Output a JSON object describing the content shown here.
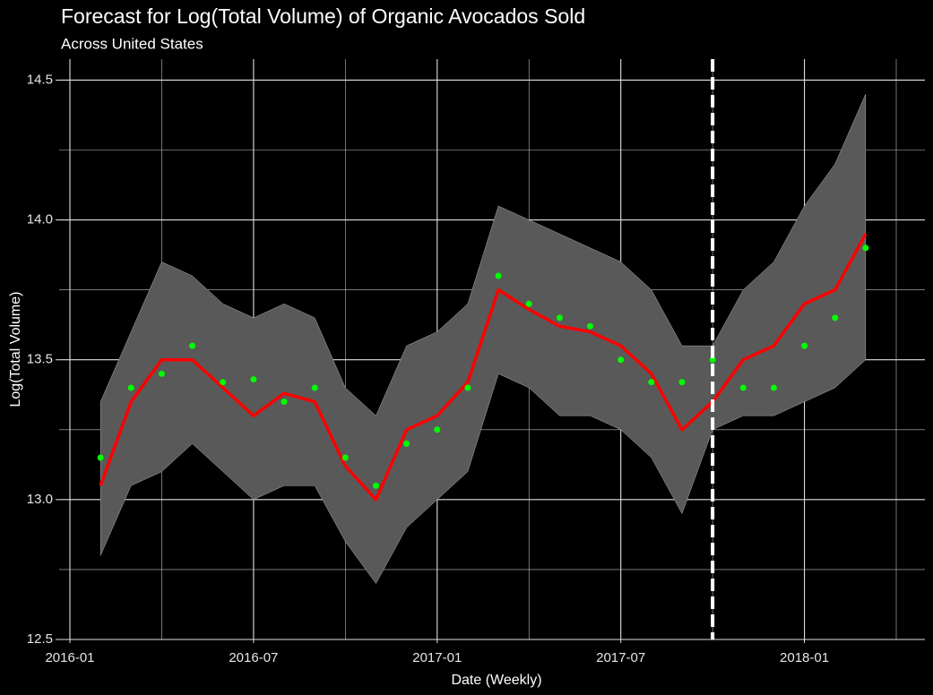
{
  "chart_data": {
    "type": "forecast",
    "title": "Forecast for Log(Total Volume) of Organic Avocados Sold",
    "subtitle": "Across United States",
    "x_label": "Date (Weekly)",
    "y_label": "Log(Total Volume)",
    "x": [
      "2016-02",
      "2016-03",
      "2016-04",
      "2016-05",
      "2016-06",
      "2016-07",
      "2016-08",
      "2016-09",
      "2016-10",
      "2016-11",
      "2016-12",
      "2017-01",
      "2017-02",
      "2017-03",
      "2017-04",
      "2017-05",
      "2017-06",
      "2017-07",
      "2017-08",
      "2017-09",
      "2017-10",
      "2017-11",
      "2017-12",
      "2018-01",
      "2018-02",
      "2018-03"
    ],
    "fitted": {
      "color": "#ff0000",
      "values": [
        13.05,
        13.35,
        13.5,
        13.5,
        13.4,
        13.3,
        13.38,
        13.35,
        13.12,
        13.0,
        13.25,
        13.3,
        13.42,
        13.75,
        13.68,
        13.62,
        13.6,
        13.55,
        13.45,
        13.25,
        13.35,
        13.5,
        13.55,
        13.7,
        13.75,
        13.95
      ]
    },
    "actual": {
      "color": "#00ff00",
      "values": [
        13.15,
        13.4,
        13.45,
        13.55,
        13.42,
        13.43,
        13.35,
        13.4,
        13.15,
        13.05,
        13.2,
        13.25,
        13.4,
        13.8,
        13.7,
        13.65,
        13.62,
        13.5,
        13.42,
        13.42,
        13.5,
        13.4,
        13.4,
        13.55,
        13.65,
        13.9
      ]
    },
    "band": {
      "color": "#595959",
      "lower": [
        12.8,
        13.05,
        13.1,
        13.2,
        13.1,
        13.0,
        13.05,
        13.05,
        12.85,
        12.7,
        12.9,
        13.0,
        13.1,
        13.45,
        13.4,
        13.3,
        13.3,
        13.25,
        13.15,
        12.95,
        13.25,
        13.3,
        13.3,
        13.35,
        13.4,
        13.5
      ],
      "upper": [
        13.35,
        13.6,
        13.85,
        13.8,
        13.7,
        13.65,
        13.7,
        13.65,
        13.4,
        13.3,
        13.55,
        13.6,
        13.7,
        14.05,
        14.0,
        13.95,
        13.9,
        13.85,
        13.75,
        13.55,
        13.55,
        13.75,
        13.85,
        14.05,
        14.2,
        14.45
      ]
    },
    "forecast_start": "2017-10",
    "xlim": [
      "2016-01",
      "2018-04"
    ],
    "xticks": [
      "2016-01",
      "2016-07",
      "2017-01",
      "2017-07",
      "2018-01"
    ],
    "xminor_ticks": [
      "2016-04",
      "2016-10",
      "2017-04",
      "2017-10",
      "2018-04"
    ],
    "ylim": [
      12.5,
      14.575
    ],
    "yticks": [
      {
        "value": 12.5,
        "label": "12.5"
      },
      {
        "value": 13,
        "label": "13.0"
      },
      {
        "value": 13.5,
        "label": "13.5"
      },
      {
        "value": 14,
        "label": "14.0"
      },
      {
        "value": 14.5,
        "label": "14.5"
      }
    ],
    "yminor_ticks": [
      12.75,
      13.25,
      13.75,
      14.25
    ],
    "grid": true
  }
}
